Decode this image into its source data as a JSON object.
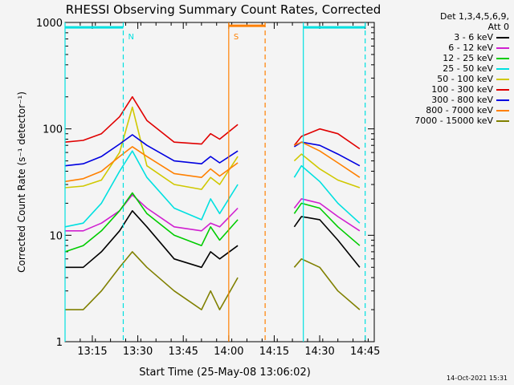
{
  "chart_data": {
    "type": "line",
    "title": "RHESSI Observing Summary Count Rates, Corrected",
    "xlabel": "Start Time (25-May-08 13:06:02)",
    "ylabel": "Corrected Count Rate (s⁻¹ detector⁻¹)",
    "y_scale": "log",
    "ylim": [
      1,
      1000
    ],
    "xlim": [
      13.1,
      14.8
    ],
    "x_ticks": [
      "13:15",
      "13:30",
      "13:45",
      "14:00",
      "14:15",
      "14:30",
      "14:45"
    ],
    "y_ticks": [
      "1",
      "10",
      "100",
      "1000"
    ],
    "detectors": "Det 1,3,4,5,6,9,",
    "attenuator": "Att 0",
    "timestamp": "14-Oct-2021 15:31",
    "x_time_points": [
      13.1,
      13.2,
      13.3,
      13.4,
      13.47,
      13.55,
      13.7,
      13.85,
      13.9,
      13.95,
      14.05,
      14.36,
      14.4,
      14.5,
      14.6,
      14.72
    ],
    "gap": {
      "start": 14.12,
      "end": 14.35
    },
    "series": [
      {
        "name": "3 - 6 keV",
        "color": "#000000",
        "values": [
          5,
          5,
          7,
          11,
          17,
          12,
          6,
          5,
          7,
          6,
          8,
          12,
          15,
          14,
          9,
          5
        ]
      },
      {
        "name": "6 - 12 keV",
        "color": "#d020d0",
        "values": [
          11,
          11,
          13,
          17,
          24,
          18,
          12,
          11,
          13,
          12,
          18,
          18,
          22,
          20,
          15,
          11
        ]
      },
      {
        "name": "12 - 25 keV",
        "color": "#00cc00",
        "values": [
          7,
          8,
          11,
          17,
          25,
          16,
          10,
          8,
          12,
          9,
          14,
          16,
          20,
          18,
          12,
          8
        ]
      },
      {
        "name": "25 - 50 keV",
        "color": "#00e0e0",
        "values": [
          12,
          13,
          20,
          40,
          62,
          35,
          18,
          14,
          22,
          16,
          30,
          35,
          45,
          32,
          20,
          13
        ]
      },
      {
        "name": "50 - 100 keV",
        "color": "#d0c800",
        "values": [
          28,
          29,
          33,
          60,
          160,
          45,
          30,
          27,
          35,
          30,
          55,
          50,
          58,
          42,
          33,
          28
        ]
      },
      {
        "name": "100 - 300 keV",
        "color": "#e00000",
        "values": [
          75,
          78,
          90,
          130,
          200,
          120,
          75,
          72,
          90,
          80,
          110,
          70,
          85,
          100,
          90,
          65
        ]
      },
      {
        "name": "300 - 800 keV",
        "color": "#0000e0",
        "values": [
          45,
          47,
          55,
          72,
          88,
          70,
          50,
          47,
          55,
          48,
          62,
          68,
          75,
          70,
          58,
          45
        ]
      },
      {
        "name": "800 - 7000 keV",
        "color": "#ff8000",
        "values": [
          32,
          34,
          40,
          55,
          68,
          55,
          38,
          35,
          42,
          36,
          48,
          70,
          75,
          62,
          48,
          35
        ]
      },
      {
        "name": "7000 - 15000 keV",
        "color": "#808000",
        "values": [
          2,
          2,
          3,
          5,
          7,
          5,
          3,
          2,
          3,
          2,
          4,
          5,
          6,
          5,
          3,
          2
        ]
      }
    ],
    "annotations": [
      {
        "label": "N",
        "color": "#00e0e0",
        "x": 13.42
      },
      {
        "label": "S",
        "color": "#ff8000",
        "x": 14.0
      }
    ],
    "bars": [
      {
        "color": "#00e0e0",
        "x_start": 13.1,
        "x_end": 13.42,
        "y": 900
      },
      {
        "color": "#ff8000",
        "x_start": 14.0,
        "x_end": 14.2,
        "y": 930
      },
      {
        "color": "#00e0e0",
        "x_start": 14.41,
        "x_end": 14.75,
        "y": 900
      }
    ],
    "vlines": [
      {
        "color": "#00e0e0",
        "x": 13.1,
        "dashed": false
      },
      {
        "color": "#00e0e0",
        "x": 13.42,
        "dashed": true
      },
      {
        "color": "#ff8000",
        "x": 14.0,
        "dashed": false
      },
      {
        "color": "#ff8000",
        "x": 14.2,
        "dashed": true
      },
      {
        "color": "#00e0e0",
        "x": 14.41,
        "dashed": false
      },
      {
        "color": "#00e0e0",
        "x": 14.75,
        "dashed": true
      }
    ]
  }
}
